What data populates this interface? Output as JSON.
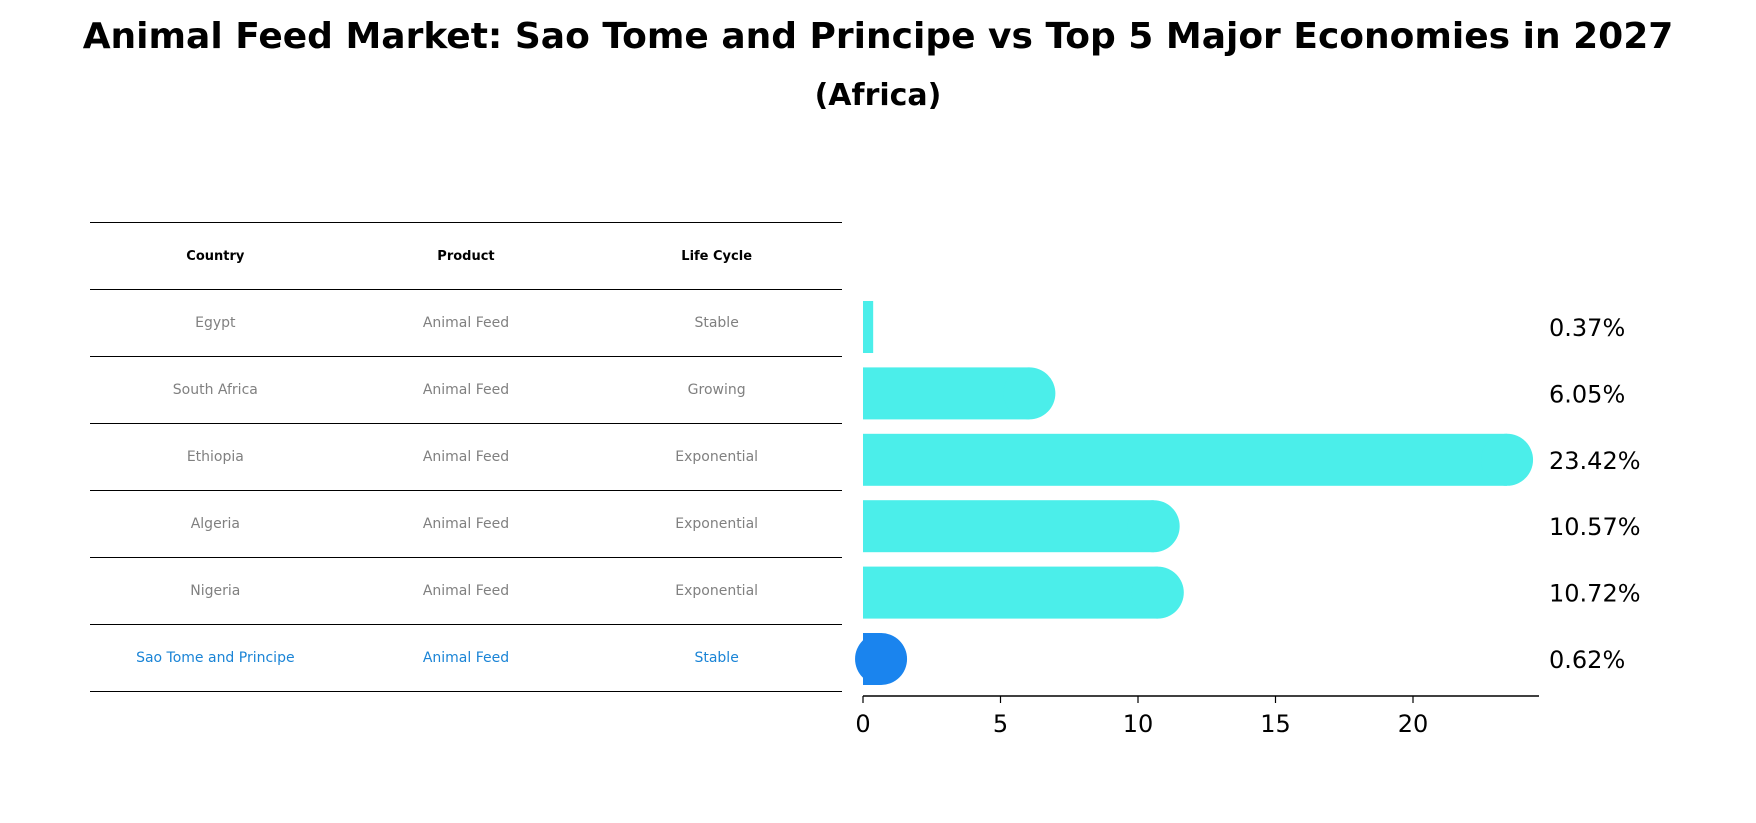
{
  "title": "Animal Feed Market: Sao Tome and Principe vs Top 5 Major Economies in 2027",
  "subtitle": "(Africa)",
  "table": {
    "headers": [
      "Country",
      "Product",
      "Life Cycle"
    ],
    "rows": [
      {
        "country": "Egypt",
        "product": "Animal Feed",
        "life_cycle": "Stable"
      },
      {
        "country": "South Africa",
        "product": "Animal Feed",
        "life_cycle": "Growing"
      },
      {
        "country": "Ethiopia",
        "product": "Animal Feed",
        "life_cycle": "Exponential"
      },
      {
        "country": "Algeria",
        "product": "Animal Feed",
        "life_cycle": "Exponential"
      },
      {
        "country": "Nigeria",
        "product": "Animal Feed",
        "life_cycle": "Exponential"
      },
      {
        "country": "Sao Tome and Principe",
        "product": "Animal Feed",
        "life_cycle": "Stable"
      }
    ]
  },
  "chart_data": {
    "type": "bar",
    "orientation": "horizontal",
    "title": "Animal Feed Market: Sao Tome and Principe vs Top 5 Major Economies in 2027",
    "subtitle": "(Africa)",
    "categories": [
      "Egypt",
      "South Africa",
      "Ethiopia",
      "Algeria",
      "Nigeria",
      "Sao Tome and Principe"
    ],
    "values": [
      0.37,
      6.05,
      23.42,
      10.57,
      10.72,
      0.62
    ],
    "value_labels": [
      "0.37%",
      "6.05%",
      "23.42%",
      "10.57%",
      "10.72%",
      "0.62%"
    ],
    "xticks": [
      0,
      5,
      10,
      15,
      20
    ],
    "xlim": [
      0,
      24.6
    ],
    "xlabel": "",
    "ylabel": "",
    "grid": false,
    "colors": {
      "default": "#4beeea",
      "highlight": "#1a84ee"
    },
    "highlight_category": "Sao Tome and Principe"
  }
}
